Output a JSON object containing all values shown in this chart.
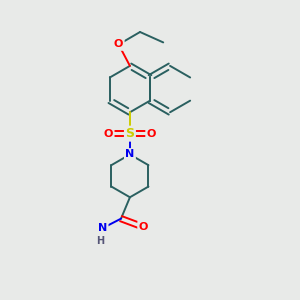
{
  "bg_color": "#e8eae8",
  "bond_color": "#2a6060",
  "bond_width": 1.4,
  "atom_colors": {
    "O": "#ff0000",
    "S": "#cccc00",
    "N": "#0000ee",
    "H": "#555577"
  },
  "figsize": [
    3.0,
    3.0
  ],
  "dpi": 100,
  "xlim": [
    0,
    10
  ],
  "ylim": [
    0,
    10
  ]
}
